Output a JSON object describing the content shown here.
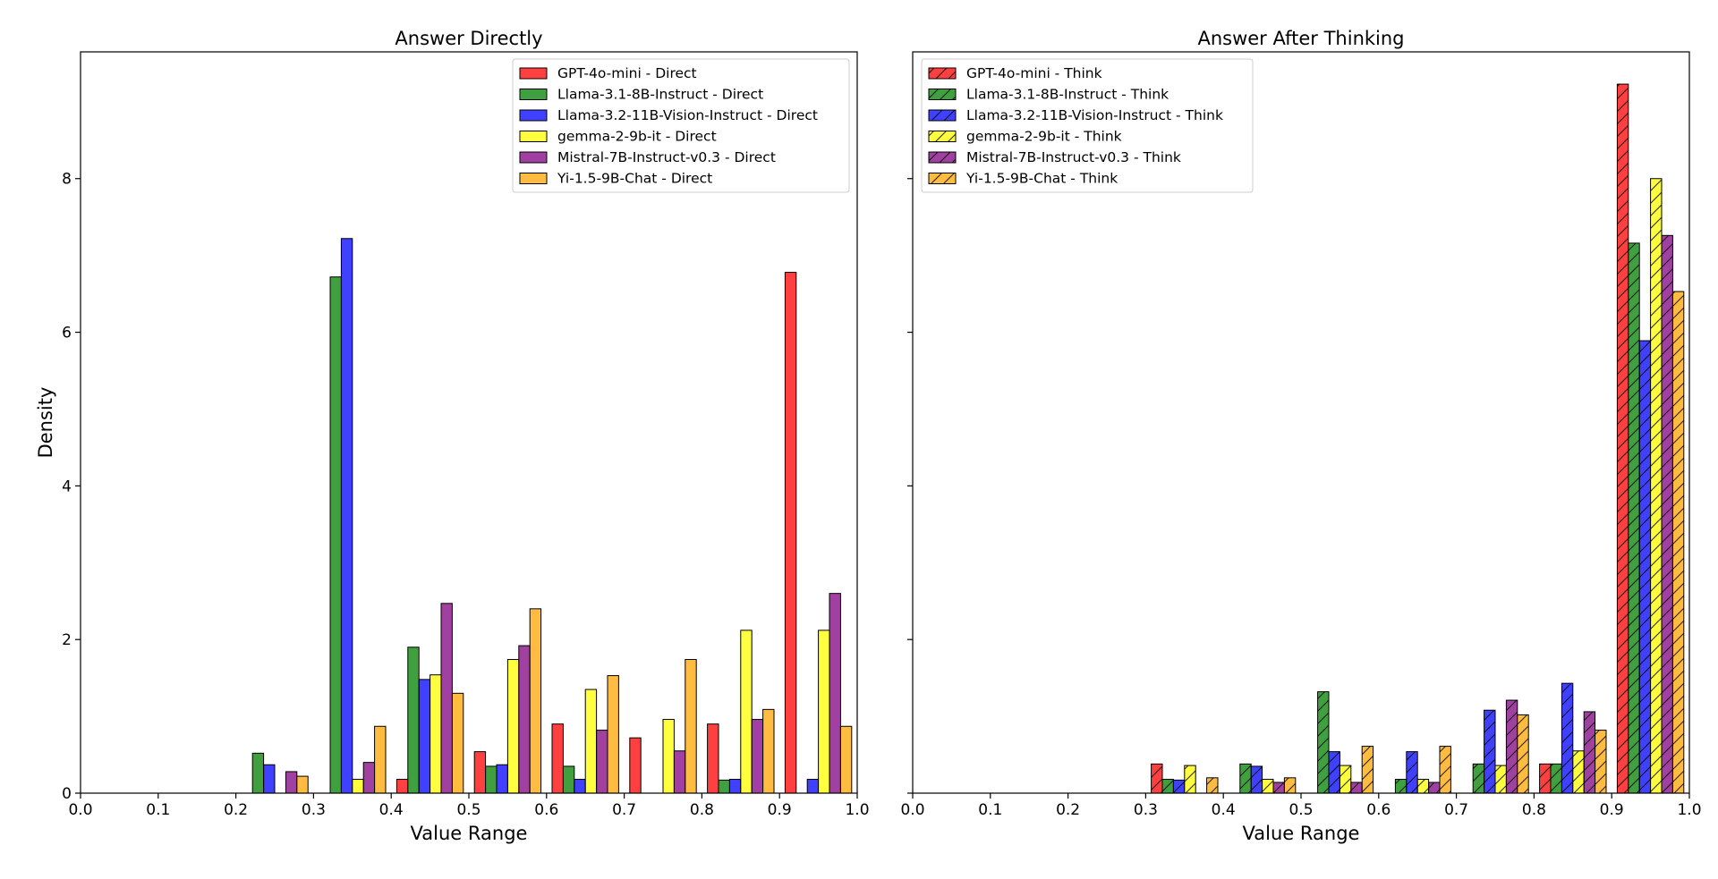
{
  "chart_data": [
    {
      "type": "bar",
      "title": "Answer Directly",
      "xlabel": "Value Range",
      "ylabel": "Density",
      "xlim": [
        0.0,
        1.0
      ],
      "ylim": [
        0,
        9.65
      ],
      "xticks": [
        "0.0",
        "0.1",
        "0.2",
        "0.3",
        "0.4",
        "0.5",
        "0.6",
        "0.7",
        "0.8",
        "0.9",
        "1.0"
      ],
      "yticks": [
        "0",
        "2",
        "4",
        "6",
        "8"
      ],
      "bins": [
        "0.2-0.3",
        "0.3-0.4",
        "0.4-0.5",
        "0.5-0.6",
        "0.6-0.7",
        "0.7-0.8",
        "0.8-0.9",
        "0.9-1.0"
      ],
      "hatched": false,
      "legend_position": "top-right",
      "series": [
        {
          "name": "GPT-4o-mini - Direct",
          "color": "#ff0000",
          "values": [
            0,
            0,
            0.18,
            0.54,
            0.9,
            0.72,
            0.9,
            6.78
          ]
        },
        {
          "name": "Llama-3.1-8B-Instruct - Direct",
          "color": "#008000",
          "values": [
            0.52,
            6.72,
            1.9,
            0.35,
            0.35,
            0,
            0.17,
            0
          ]
        },
        {
          "name": "Llama-3.2-11B-Vision-Instruct - Direct",
          "color": "#0000ff",
          "values": [
            0.37,
            7.22,
            1.48,
            0.37,
            0.18,
            0,
            0.18,
            0.18
          ]
        },
        {
          "name": "gemma-2-9b-it - Direct",
          "color": "#ffff00",
          "values": [
            0,
            0.18,
            1.54,
            1.74,
            1.35,
            0.96,
            2.12,
            2.12
          ]
        },
        {
          "name": "Mistral-7B-Instruct-v0.3 - Direct",
          "color": "#800080",
          "values": [
            0.28,
            0.4,
            2.47,
            1.92,
            0.82,
            0.55,
            0.96,
            2.6
          ]
        },
        {
          "name": "Yi-1.5-9B-Chat - Direct",
          "color": "#ffa500",
          "values": [
            0.22,
            0.87,
            1.3,
            2.4,
            1.53,
            1.74,
            1.09,
            0.87
          ]
        }
      ]
    },
    {
      "type": "bar",
      "title": "Answer After Thinking",
      "xlabel": "Value Range",
      "ylabel": "",
      "xlim": [
        0.0,
        1.0
      ],
      "ylim": [
        0,
        9.65
      ],
      "xticks": [
        "0.0",
        "0.1",
        "0.2",
        "0.3",
        "0.4",
        "0.5",
        "0.6",
        "0.7",
        "0.8",
        "0.9",
        "1.0"
      ],
      "yticks": [
        "0",
        "2",
        "4",
        "6",
        "8"
      ],
      "bins": [
        "0.3-0.4",
        "0.4-0.5",
        "0.5-0.6",
        "0.6-0.7",
        "0.7-0.8",
        "0.8-0.9",
        "0.9-1.0"
      ],
      "hatched": true,
      "legend_position": "top-left",
      "series": [
        {
          "name": "GPT-4o-mini - Think",
          "color": "#ff0000",
          "values": [
            0.38,
            0,
            0,
            0,
            0,
            0.38,
            9.23
          ]
        },
        {
          "name": "Llama-3.1-8B-Instruct - Think",
          "color": "#008000",
          "values": [
            0.18,
            0.38,
            1.32,
            0.18,
            0.38,
            0.38,
            7.16
          ]
        },
        {
          "name": "Llama-3.2-11B-Vision-Instruct - Think",
          "color": "#0000ff",
          "values": [
            0.17,
            0.35,
            0.54,
            0.54,
            1.08,
            1.43,
            5.89
          ]
        },
        {
          "name": "gemma-2-9b-it - Think",
          "color": "#ffff00",
          "values": [
            0.36,
            0.18,
            0.36,
            0.18,
            0.36,
            0.55,
            8.0
          ]
        },
        {
          "name": "Mistral-7B-Instruct-v0.3 - Think",
          "color": "#800080",
          "values": [
            0,
            0.14,
            0.14,
            0.14,
            1.21,
            1.06,
            7.26
          ]
        },
        {
          "name": "Yi-1.5-9B-Chat - Think",
          "color": "#ffa500",
          "values": [
            0.2,
            0.2,
            0.61,
            0.61,
            1.02,
            0.82,
            6.53
          ]
        }
      ]
    }
  ]
}
